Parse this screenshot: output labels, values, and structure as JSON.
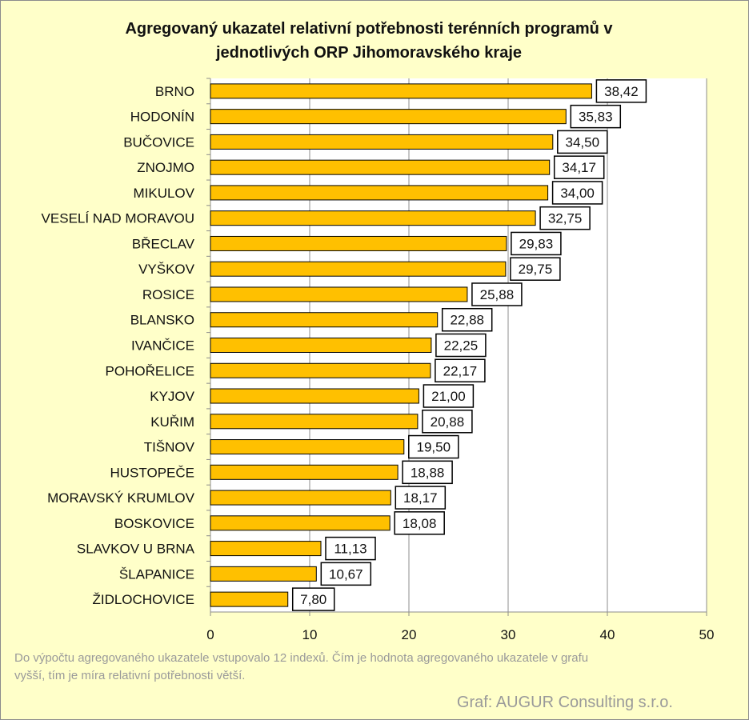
{
  "chart_data": {
    "type": "bar",
    "orientation": "horizontal",
    "title": "Agregovaný ukazatel relativní potřebnosti terénních programů v jednotlivých ORP Jihomoravského kraje",
    "title_lines": [
      "Agregovaný ukazatel relativní potřebnosti terénních programů v",
      "jednotlivých ORP Jihomoravského kraje"
    ],
    "categories": [
      "BRNO",
      "HODONÍN",
      "BUČOVICE",
      "ZNOJMO",
      "MIKULOV",
      "VESELÍ NAD MORAVOU",
      "BŘECLAV",
      "VYŠKOV",
      "ROSICE",
      "BLANSKO",
      "IVANČICE",
      "POHOŘELICE",
      "KYJOV",
      "KUŘIM",
      "TIŠNOV",
      "HUSTOPEČE",
      "MORAVSKÝ KRUMLOV",
      "BOSKOVICE",
      "SLAVKOV U BRNA",
      "ŠLAPANICE",
      "ŽIDLOCHOVICE"
    ],
    "values": [
      38.42,
      35.83,
      34.5,
      34.17,
      34.0,
      32.75,
      29.83,
      29.75,
      25.88,
      22.88,
      22.25,
      22.17,
      21.0,
      20.88,
      19.5,
      18.88,
      18.17,
      18.08,
      11.13,
      10.67,
      7.8
    ],
    "data_labels": [
      "38,42",
      "35,83",
      "34,50",
      "34,17",
      "34,00",
      "32,75",
      "29,83",
      "29,75",
      "25,88",
      "22,88",
      "22,25",
      "22,17",
      "21,00",
      "20,88",
      "19,50",
      "18,88",
      "18,17",
      "18,08",
      "11,13",
      "10,67",
      "7,80"
    ],
    "xlim": [
      0,
      50
    ],
    "xticks": [
      "0",
      "10",
      "20",
      "30",
      "40",
      "50"
    ],
    "grid": true,
    "bar_color": "#ffc000",
    "bar_edge_color": "#000000",
    "plot_background": "#ffffff",
    "page_background": "#ffffc9"
  },
  "footer": {
    "note": "Do výpočtu agregovaného ukazatele vstupovalo 12 indexů. Čím je hodnota agregovaného ukazatele v grafu vyšší, tím je míra relativní potřebnosti větší.",
    "credit": "Graf: AUGUR Consulting s.r.o."
  }
}
